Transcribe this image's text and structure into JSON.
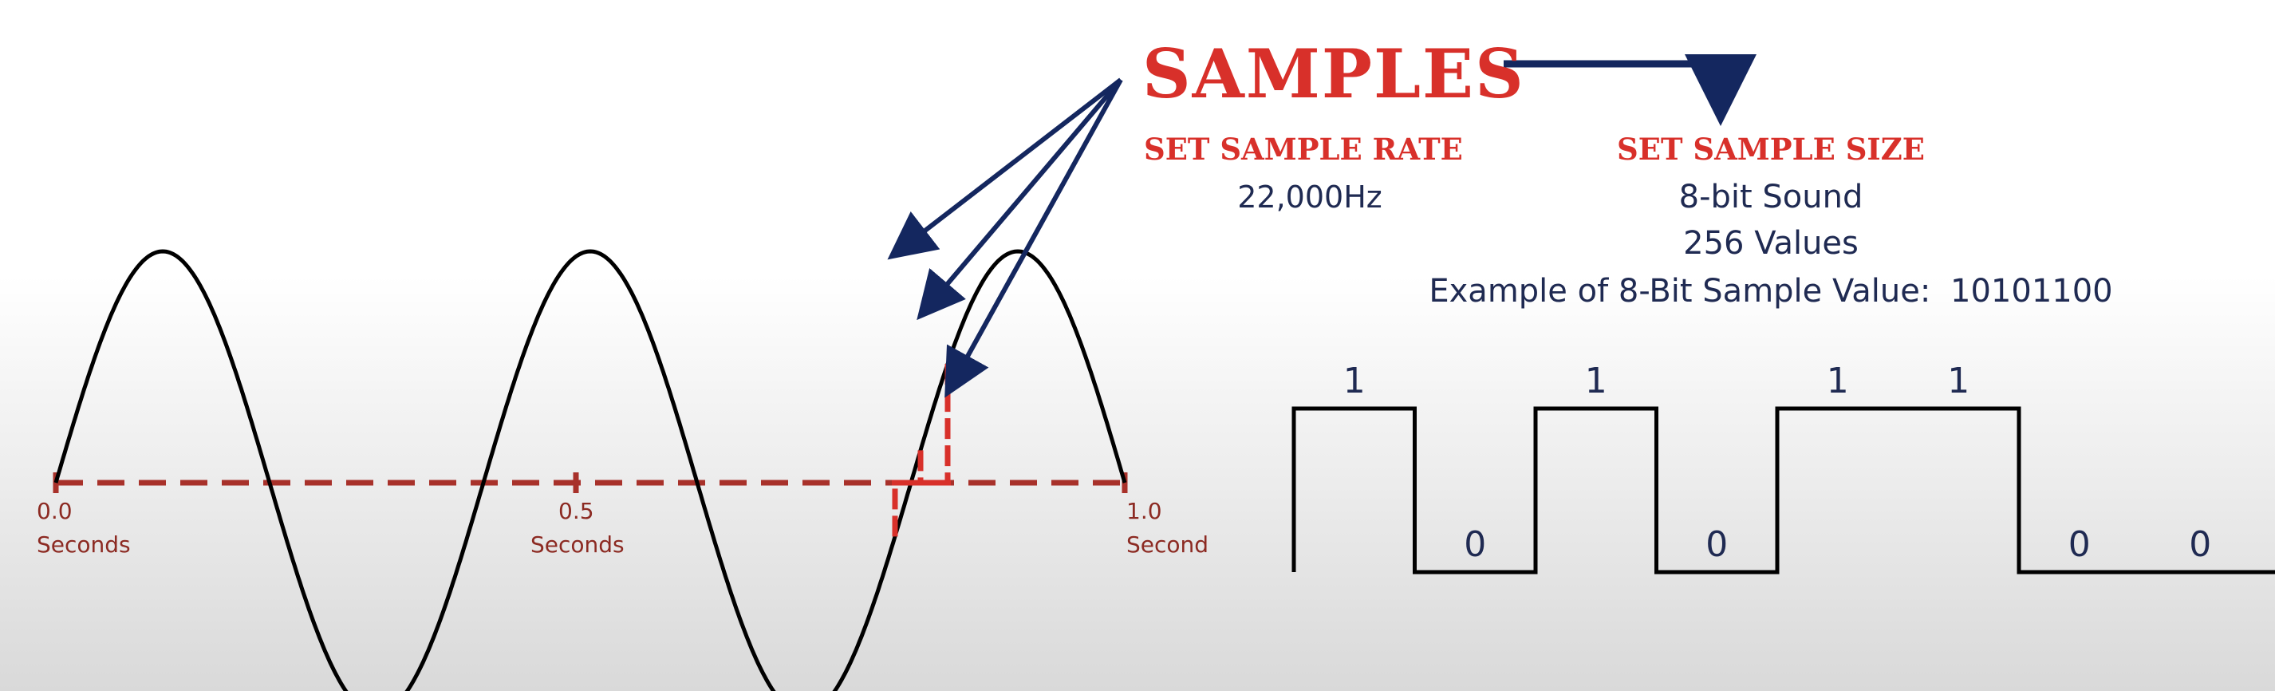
{
  "header": {
    "title": "SAMPLES"
  },
  "sample_rate": {
    "heading": "SET SAMPLE RATE",
    "value": "22,000Hz"
  },
  "sample_size": {
    "heading": "SET SAMPLE SIZE",
    "bit_depth": "8-bit Sound",
    "values_count": "256 Values",
    "example_label": "Example of 8-Bit Sample Value:",
    "example_value": "10101100"
  },
  "time_axis": {
    "start_value": "0.0",
    "start_unit": "Seconds",
    "mid_value": "0.5",
    "mid_unit": "Seconds",
    "end_value": "1.0",
    "end_unit": "Second"
  },
  "bits": [
    "1",
    "0",
    "1",
    "0",
    "1",
    "1",
    "0",
    "0"
  ],
  "colors": {
    "red_title": "#d8302a",
    "axis_red": "#a8312a",
    "navy": "#1f2a52",
    "arrow_navy": "#14275f"
  }
}
